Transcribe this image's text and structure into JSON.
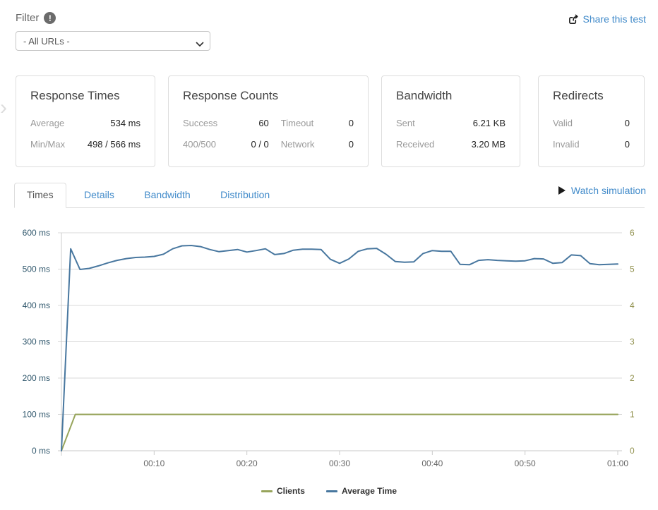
{
  "header": {
    "filter_label": "Filter",
    "share_link": "Share this test"
  },
  "filter_select": {
    "selected_value": "- All URLs -"
  },
  "cards": [
    {
      "title": "Response Times",
      "rows": [
        {
          "label": "Average",
          "value": "534 ms"
        },
        {
          "label": "Min/Max",
          "value": "498 / 566 ms"
        }
      ]
    },
    {
      "title": "Response Counts",
      "rows": [
        [
          {
            "label": "Success",
            "value": "60"
          },
          {
            "label": "Timeout",
            "value": "0"
          }
        ],
        [
          {
            "label": "400/500",
            "value": "0 / 0"
          },
          {
            "label": "Network",
            "value": "0"
          }
        ]
      ]
    },
    {
      "title": "Bandwidth",
      "rows": [
        {
          "label": "Sent",
          "value": "6.21 KB"
        },
        {
          "label": "Received",
          "value": "3.20 MB"
        }
      ]
    },
    {
      "title": "Redirects",
      "rows": [
        {
          "label": "Valid",
          "value": "0"
        },
        {
          "label": "Invalid",
          "value": "0"
        }
      ]
    }
  ],
  "tabs": {
    "items": [
      {
        "label": "Times",
        "active": true
      },
      {
        "label": "Details",
        "active": false
      },
      {
        "label": "Bandwidth",
        "active": false
      },
      {
        "label": "Distribution",
        "active": false
      }
    ],
    "watch_link": "Watch simulation"
  },
  "colors": {
    "link": "#428bca",
    "left_axis_label": "#31586d",
    "right_axis_label": "#8f8f4b",
    "x_axis_label": "#666666",
    "gridline": "#d9d9d9",
    "clients_line": "#97a45b",
    "average_time_line": "#48779f"
  },
  "chart_data": {
    "type": "line",
    "title": "",
    "grid": true,
    "legend_position": "bottom-center",
    "x_axis": {
      "range_seconds": [
        0,
        60
      ],
      "tick_seconds": [
        10,
        20,
        30,
        40,
        50,
        60
      ],
      "tick_labels": [
        "00:10",
        "00:20",
        "00:30",
        "00:40",
        "00:50",
        "01:00"
      ]
    },
    "left_axis": {
      "unit": "ms",
      "range": [
        0,
        600
      ],
      "tick_values": [
        0,
        100,
        200,
        300,
        400,
        500,
        600
      ],
      "tick_labels": [
        "0 ms",
        "100 ms",
        "200 ms",
        "300 ms",
        "400 ms",
        "500 ms",
        "600 ms"
      ]
    },
    "right_axis": {
      "unit": "clients",
      "range": [
        0,
        6
      ],
      "tick_values": [
        0,
        1,
        2,
        3,
        4,
        5,
        6
      ],
      "tick_labels": [
        "0",
        "1",
        "2",
        "3",
        "4",
        "5",
        "6"
      ]
    },
    "series": [
      {
        "name": "Clients",
        "axis": "right",
        "color": "#97a45b",
        "x": [
          0,
          1.5,
          60
        ],
        "values": [
          0,
          1,
          1
        ]
      },
      {
        "name": "Average Time",
        "axis": "left",
        "color": "#48779f",
        "x_step_seconds": 1,
        "values": [
          0,
          556,
          499,
          502,
          509,
          517,
          524,
          529,
          532,
          533,
          535,
          541,
          556,
          564,
          565,
          562,
          554,
          548,
          551,
          554,
          547,
          551,
          556,
          540,
          543,
          552,
          555,
          555,
          554,
          527,
          516,
          528,
          549,
          556,
          557,
          541,
          521,
          519,
          520,
          543,
          551,
          549,
          549,
          513,
          512,
          524,
          526,
          524,
          523,
          522,
          523,
          529,
          528,
          516,
          518,
          539,
          537,
          515,
          512,
          513,
          514
        ]
      }
    ]
  }
}
